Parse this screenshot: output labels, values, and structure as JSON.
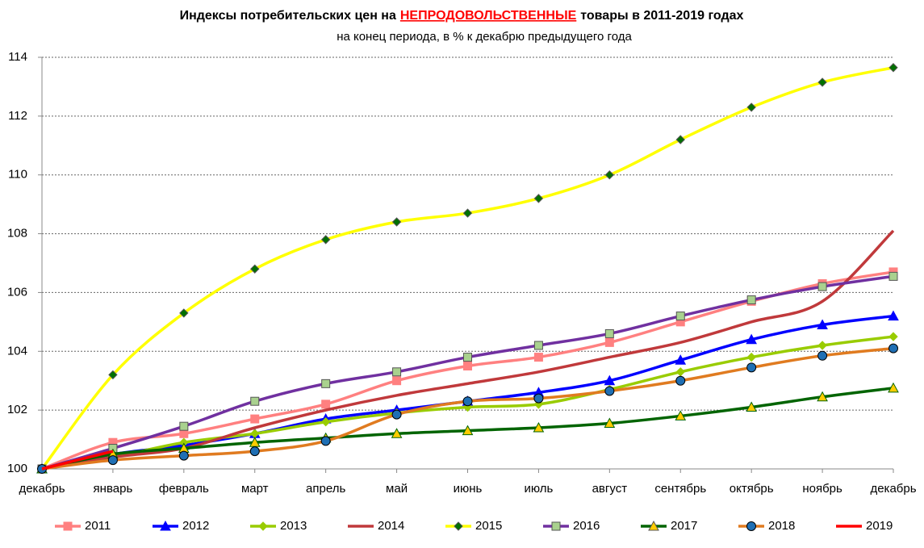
{
  "chart_data": {
    "type": "line",
    "title_parts": [
      "Индексы потребительских цен на",
      "НЕПРОДОВОЛЬСТВЕННЫЕ",
      "товары в 2011-2019 годах"
    ],
    "subtitle": "на конец периода, в % к декабрю предыдущего года",
    "categories": [
      "декабрь",
      "январь",
      "февраль",
      "март",
      "апрель",
      "май",
      "июнь",
      "июль",
      "август",
      "сентябрь",
      "октябрь",
      "ноябрь",
      "декабрь"
    ],
    "ylim": [
      100,
      114
    ],
    "yticks": [
      100,
      102,
      104,
      106,
      108,
      110,
      112,
      114
    ],
    "grid": true,
    "legend": "bottom",
    "series": [
      {
        "name": "2011",
        "color": "#ff8080",
        "marker": "square",
        "marker_color": "#ff8080",
        "values": [
          100,
          100.9,
          101.2,
          101.7,
          102.2,
          103.0,
          103.5,
          103.8,
          104.3,
          105.0,
          105.7,
          106.3,
          106.7
        ]
      },
      {
        "name": "2012",
        "color": "#0000ff",
        "marker": "triangle",
        "marker_color": "#0000ff",
        "values": [
          100,
          100.5,
          100.8,
          101.2,
          101.7,
          102.0,
          102.3,
          102.6,
          103.0,
          103.7,
          104.4,
          104.9,
          105.2
        ]
      },
      {
        "name": "2013",
        "color": "#99cc00",
        "marker": "diamond",
        "marker_color": "#99cc00",
        "values": [
          100,
          100.4,
          100.9,
          101.2,
          101.6,
          101.9,
          102.1,
          102.2,
          102.7,
          103.3,
          103.8,
          104.2,
          104.5
        ]
      },
      {
        "name": "2014",
        "color": "#c0393b",
        "marker": null,
        "marker_color": null,
        "values": [
          100,
          100.4,
          100.7,
          101.4,
          102.0,
          102.5,
          102.9,
          103.3,
          103.8,
          104.3,
          105.0,
          105.7,
          108.1
        ]
      },
      {
        "name": "2015",
        "color": "#ffff00",
        "marker": "diamond",
        "marker_color": "#007000",
        "values": [
          100,
          103.2,
          105.3,
          106.8,
          107.8,
          108.4,
          108.7,
          109.2,
          110.0,
          111.2,
          112.3,
          113.15,
          113.65
        ]
      },
      {
        "name": "2016",
        "color": "#7030a0",
        "marker": "square",
        "marker_color": "#a9d18e",
        "values": [
          100,
          100.7,
          101.45,
          102.3,
          102.9,
          103.3,
          103.8,
          104.2,
          104.6,
          105.2,
          105.75,
          106.2,
          106.55
        ]
      },
      {
        "name": "2017",
        "color": "#006400",
        "marker": "triangle",
        "marker_color": "#ffcc00",
        "values": [
          100,
          100.5,
          100.7,
          100.9,
          101.05,
          101.2,
          101.3,
          101.4,
          101.55,
          101.8,
          102.1,
          102.45,
          102.75
        ]
      },
      {
        "name": "2018",
        "color": "#e07b20",
        "marker": "circle",
        "marker_color": "#1f6fb4",
        "values": [
          100,
          100.3,
          100.45,
          100.6,
          100.95,
          101.85,
          102.3,
          102.4,
          102.65,
          103.0,
          103.45,
          103.85,
          104.1
        ]
      },
      {
        "name": "2019",
        "color": "#ff0000",
        "marker": null,
        "marker_color": null,
        "values": [
          100,
          100.6,
          null,
          null,
          null,
          null,
          null,
          null,
          null,
          null,
          null,
          null,
          null
        ]
      }
    ]
  }
}
